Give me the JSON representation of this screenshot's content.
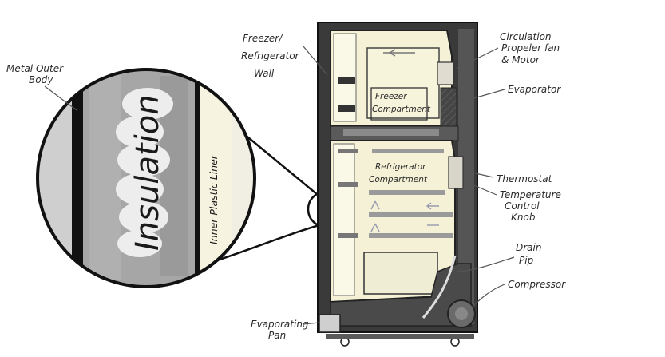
{
  "labels": {
    "metal_outer_body": [
      "Metal Outer",
      "Body"
    ],
    "freezer_wall": [
      "Freezer/",
      "Refrigerator",
      "Wall"
    ],
    "circulation_fan": [
      "Circulation",
      "Propeler fan",
      "& Motor"
    ],
    "evaporator": "Evaporator",
    "thermostat": "Thermostat",
    "temp_control": [
      "Temperature",
      "Control",
      "Knob"
    ],
    "drain_pip": [
      "Drain",
      "Pip"
    ],
    "compressor": "Compressor",
    "evaporating_pan": [
      "Evaporating",
      "Pan"
    ],
    "freezer_compartment": [
      "Freezer",
      "Compartment"
    ],
    "refrigerator_compartment": [
      "Refrigerator",
      "Compartment"
    ]
  },
  "inset": {
    "insulation": "Insulation",
    "inner_liner": "Inner Plastic Liner"
  },
  "colors": {
    "ink": "#1a1a1a",
    "cabinet": "#3a3a3a",
    "liner_fill": "#f4f1d6",
    "shelf": "#9a9a9a",
    "insulation_gray": "#9c9c9c"
  }
}
